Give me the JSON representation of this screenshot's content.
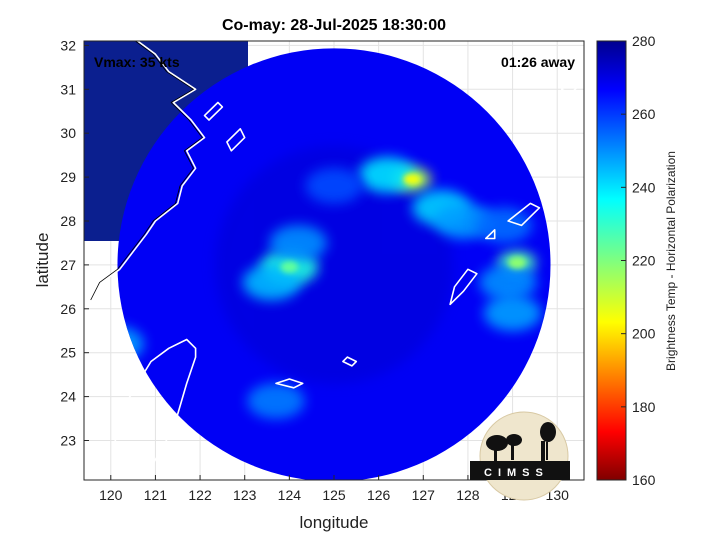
{
  "chart_data": {
    "type": "heatmap",
    "title": "Co-may: 28-Jul-2025 18:30:00",
    "xlabel": "longitude",
    "ylabel": "latitude",
    "xlim": [
      119.4,
      130.6
    ],
    "ylim": [
      22.1,
      32.1
    ],
    "xticks": [
      120,
      121,
      122,
      123,
      124,
      125,
      126,
      127,
      128,
      129,
      130
    ],
    "yticks": [
      23,
      24,
      25,
      26,
      27,
      28,
      29,
      30,
      31,
      32
    ],
    "grid": true,
    "annotations": {
      "vmax": "Vmax: 35 kts",
      "time_offset": "01:26 away"
    },
    "colorbar": {
      "label": "Brightness Temp - Horizontal Polarization",
      "range": [
        160,
        280
      ],
      "ticks": [
        160,
        180,
        200,
        220,
        240,
        260,
        280
      ],
      "colormap": "jet"
    },
    "swath": {
      "center_lon": 125.0,
      "center_lat": 27.0,
      "radius_deg": 4.85,
      "background_value": 268
    },
    "features": [
      {
        "lon": 126.75,
        "lat": 28.95,
        "value": 213
      },
      {
        "lon": 126.2,
        "lat": 29.05,
        "value": 240
      },
      {
        "lon": 127.4,
        "lat": 28.3,
        "value": 242
      },
      {
        "lon": 127.9,
        "lat": 28.0,
        "value": 248
      },
      {
        "lon": 124.0,
        "lat": 26.95,
        "value": 232
      },
      {
        "lon": 123.6,
        "lat": 26.6,
        "value": 245
      },
      {
        "lon": 124.2,
        "lat": 27.5,
        "value": 250
      },
      {
        "lon": 129.1,
        "lat": 27.05,
        "value": 226
      },
      {
        "lon": 128.9,
        "lat": 26.6,
        "value": 250
      },
      {
        "lon": 129.0,
        "lat": 25.9,
        "value": 248
      },
      {
        "lon": 120.1,
        "lat": 25.2,
        "value": 248
      },
      {
        "lon": 123.7,
        "lat": 23.9,
        "value": 252
      },
      {
        "lon": 125.0,
        "lat": 28.8,
        "value": 258
      },
      {
        "lon": 128.8,
        "lat": 27.9,
        "value": 254
      }
    ],
    "colors": {
      "outside_swath": "#0b1f8f",
      "coastline": "#000000",
      "island_outline": "#ffffff"
    }
  },
  "logo": {
    "text": "CIMSS"
  }
}
